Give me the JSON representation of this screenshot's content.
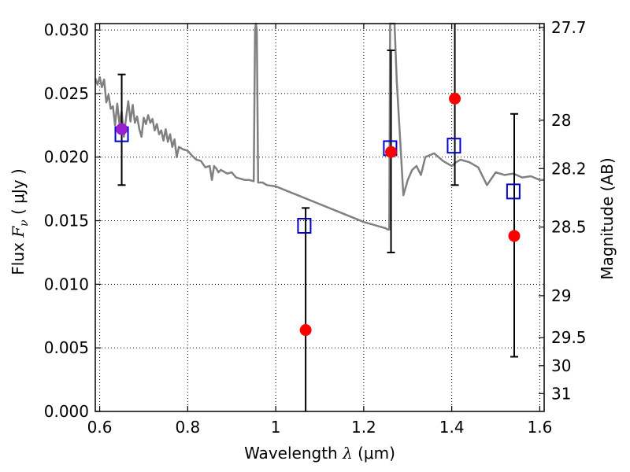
{
  "chart_data": {
    "type": "scatter",
    "xlabel_prefix": "Wavelength",
    "xlabel_symbol": "λ",
    "xlabel_unit": "(μm)",
    "ylabel_prefix": "Flux",
    "ylabel_symbol": "F",
    "ylabel_subscript": "ν",
    "ylabel_unit": "( μJy )",
    "y2label": "Magnitude (AB)",
    "xlim": [
      0.59,
      1.61
    ],
    "ylim": [
      0.0,
      0.0305
    ],
    "x_ticks": [
      {
        "value": 0.6,
        "label": "0.6"
      },
      {
        "value": 0.8,
        "label": "0.8"
      },
      {
        "value": 1.0,
        "label": "1"
      },
      {
        "value": 1.2,
        "label": "1.2"
      },
      {
        "value": 1.4,
        "label": "1.4"
      },
      {
        "value": 1.6,
        "label": "1.6"
      }
    ],
    "y_ticks": [
      {
        "value": 0.0,
        "label": "0.000"
      },
      {
        "value": 0.005,
        "label": "0.005"
      },
      {
        "value": 0.01,
        "label": "0.010"
      },
      {
        "value": 0.015,
        "label": "0.015"
      },
      {
        "value": 0.02,
        "label": "0.020"
      },
      {
        "value": 0.025,
        "label": "0.025"
      },
      {
        "value": 0.03,
        "label": "0.030"
      }
    ],
    "y2_ticks": [
      {
        "flux": 0.0302,
        "label": "27.7"
      },
      {
        "flux": 0.0229,
        "label": "28"
      },
      {
        "flux": 0.0191,
        "label": "28.2"
      },
      {
        "flux": 0.0145,
        "label": "28.5"
      },
      {
        "flux": 0.0091,
        "label": "29"
      },
      {
        "flux": 0.0058,
        "label": "29.5"
      },
      {
        "flux": 0.0036,
        "label": "30"
      },
      {
        "flux": 0.0014,
        "label": "31"
      }
    ],
    "grid": true,
    "colors": {
      "spectrum": "#808080",
      "square": "#0000cc",
      "circle": "#ff0000",
      "first_circle": "#9a1fcf",
      "errorbar": "#000000",
      "grid": "#000000"
    },
    "spectrum": {
      "x": [
        0.59,
        0.595,
        0.6,
        0.605,
        0.61,
        0.615,
        0.62,
        0.625,
        0.63,
        0.635,
        0.64,
        0.645,
        0.65,
        0.655,
        0.66,
        0.665,
        0.67,
        0.675,
        0.68,
        0.685,
        0.69,
        0.695,
        0.7,
        0.705,
        0.71,
        0.715,
        0.72,
        0.725,
        0.73,
        0.735,
        0.74,
        0.745,
        0.75,
        0.755,
        0.76,
        0.765,
        0.77,
        0.775,
        0.78,
        0.79,
        0.8,
        0.81,
        0.82,
        0.83,
        0.84,
        0.85,
        0.855,
        0.86,
        0.865,
        0.87,
        0.875,
        0.88,
        0.89,
        0.9,
        0.91,
        0.92,
        0.93,
        0.94,
        0.95,
        0.953,
        0.955,
        0.957,
        0.96,
        0.97,
        0.98,
        1.0,
        1.05,
        1.1,
        1.15,
        1.2,
        1.25,
        1.255,
        1.258,
        1.26,
        1.263,
        1.265,
        1.27,
        1.275,
        1.28,
        1.285,
        1.29,
        1.3,
        1.31,
        1.32,
        1.33,
        1.34,
        1.36,
        1.38,
        1.39,
        1.4,
        1.41,
        1.42,
        1.44,
        1.46,
        1.48,
        1.5,
        1.52,
        1.54,
        1.56,
        1.58,
        1.6,
        1.61
      ],
      "y": [
        0.0262,
        0.0257,
        0.0263,
        0.0255,
        0.0261,
        0.0243,
        0.0249,
        0.0238,
        0.024,
        0.0225,
        0.0242,
        0.0226,
        0.0236,
        0.0216,
        0.0231,
        0.0244,
        0.0228,
        0.0241,
        0.0227,
        0.0232,
        0.0222,
        0.0216,
        0.0231,
        0.0226,
        0.0233,
        0.0227,
        0.023,
        0.0221,
        0.0226,
        0.0218,
        0.0221,
        0.0213,
        0.0222,
        0.0212,
        0.0218,
        0.0208,
        0.0214,
        0.02,
        0.0208,
        0.0206,
        0.0205,
        0.0201,
        0.0198,
        0.0197,
        0.0192,
        0.0193,
        0.0182,
        0.0193,
        0.0191,
        0.0188,
        0.019,
        0.0189,
        0.0187,
        0.0188,
        0.0184,
        0.0183,
        0.0182,
        0.0182,
        0.0181,
        0.03,
        0.0305,
        0.03,
        0.018,
        0.018,
        0.0178,
        0.0177,
        0.017,
        0.0163,
        0.0156,
        0.0149,
        0.0144,
        0.0143,
        0.0143,
        0.0305,
        0.0305,
        0.0305,
        0.0305,
        0.026,
        0.023,
        0.02,
        0.017,
        0.0182,
        0.019,
        0.0193,
        0.0186,
        0.02,
        0.0203,
        0.0197,
        0.0195,
        0.0193,
        0.0196,
        0.0198,
        0.0196,
        0.0192,
        0.0178,
        0.0188,
        0.0186,
        0.0187,
        0.0184,
        0.0185,
        0.0182,
        0.0182
      ]
    },
    "squares": [
      {
        "x": 0.65,
        "y": 0.0218
      },
      {
        "x": 1.065,
        "y": 0.0146
      },
      {
        "x": 1.26,
        "y": 0.0207
      },
      {
        "x": 1.405,
        "y": 0.0209
      },
      {
        "x": 1.54,
        "y": 0.0173
      }
    ],
    "circles": [
      {
        "x": 0.65,
        "y": 0.0222,
        "low": 0.0178,
        "high": 0.0265
      },
      {
        "x": 1.068,
        "y": 0.0064,
        "low": 0.0,
        "high": 0.016
      },
      {
        "x": 1.262,
        "y": 0.0204,
        "low": 0.0125,
        "high": 0.0284
      },
      {
        "x": 1.407,
        "y": 0.0246,
        "low": 0.0178,
        "high": 0.0305
      },
      {
        "x": 1.542,
        "y": 0.0138,
        "low": 0.0043,
        "high": 0.0234
      }
    ]
  }
}
